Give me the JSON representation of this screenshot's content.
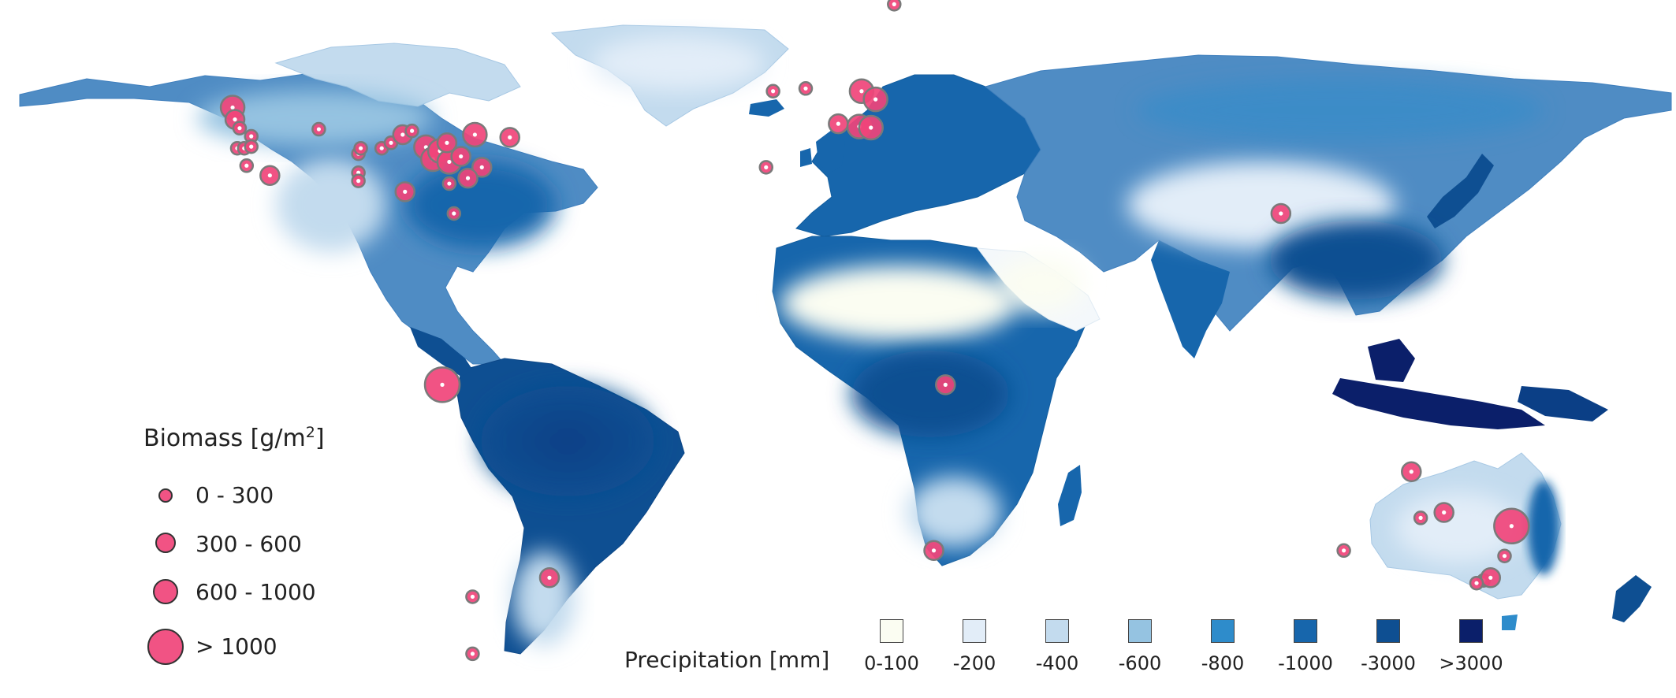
{
  "colors": {
    "ocean": "#ffffff",
    "marker_fill": "#f0447a",
    "marker_stroke": "#7a7a7a",
    "marker_core": "#ffffff"
  },
  "biomass_legend": {
    "title_text": "Biomass [g/m",
    "title_sup": "2",
    "title_close": "]",
    "classes": [
      {
        "label": "0 - 300",
        "size_class": 1
      },
      {
        "label": "300 - 600",
        "size_class": 2
      },
      {
        "label": "600 - 1000",
        "size_class": 3
      },
      {
        "label": "> 1000",
        "size_class": 4
      }
    ]
  },
  "precipitation_legend": {
    "title": "Precipitation [mm]",
    "classes": [
      {
        "label": "0-100",
        "color": "#fbfdf2"
      },
      {
        "label": "-200",
        "color": "#e2edf8"
      },
      {
        "label": "-400",
        "color": "#c3dbee"
      },
      {
        "label": "-600",
        "color": "#95c3e1"
      },
      {
        "label": "-800",
        "color": "#2e8ccb"
      },
      {
        "label": "-1000",
        "color": "#1766ac"
      },
      {
        "label": "-3000",
        "color": "#0e4f92"
      },
      {
        "label": ">3000",
        "color": "#0b1f6a"
      }
    ]
  },
  "sites": [
    {
      "lon": -123.0,
      "lat": 49.5,
      "size_class": 3
    },
    {
      "lon": -122.5,
      "lat": 47.3,
      "size_class": 2
    },
    {
      "lon": -121.5,
      "lat": 45.7,
      "size_class": 1
    },
    {
      "lon": -119.0,
      "lat": 44.2,
      "size_class": 1
    },
    {
      "lon": -122.0,
      "lat": 42.0,
      "size_class": 1
    },
    {
      "lon": -120.5,
      "lat": 42.0,
      "size_class": 1
    },
    {
      "lon": -119.0,
      "lat": 42.3,
      "size_class": 1
    },
    {
      "lon": -120.0,
      "lat": 38.8,
      "size_class": 1
    },
    {
      "lon": -115.0,
      "lat": 37.0,
      "size_class": 2
    },
    {
      "lon": -104.5,
      "lat": 45.5,
      "size_class": 1
    },
    {
      "lon": -96.0,
      "lat": 41.0,
      "size_class": 1
    },
    {
      "lon": -95.5,
      "lat": 42.0,
      "size_class": 1
    },
    {
      "lon": -91.0,
      "lat": 42.0,
      "size_class": 1
    },
    {
      "lon": -89.0,
      "lat": 43.0,
      "size_class": 1
    },
    {
      "lon": -96.0,
      "lat": 37.5,
      "size_class": 1
    },
    {
      "lon": -96.0,
      "lat": 36.0,
      "size_class": 1
    },
    {
      "lon": -86.5,
      "lat": 44.5,
      "size_class": 2
    },
    {
      "lon": -84.5,
      "lat": 45.2,
      "size_class": 1
    },
    {
      "lon": -81.5,
      "lat": 42.2,
      "size_class": 3
    },
    {
      "lon": -80.0,
      "lat": 40.0,
      "size_class": 3
    },
    {
      "lon": -78.5,
      "lat": 41.5,
      "size_class": 3
    },
    {
      "lon": -76.5,
      "lat": 39.5,
      "size_class": 3
    },
    {
      "lon": -74.0,
      "lat": 40.5,
      "size_class": 2
    },
    {
      "lon": -77.0,
      "lat": 43.0,
      "size_class": 2
    },
    {
      "lon": -71.0,
      "lat": 44.5,
      "size_class": 3
    },
    {
      "lon": -63.5,
      "lat": 44.0,
      "size_class": 2
    },
    {
      "lon": -69.5,
      "lat": 38.5,
      "size_class": 2
    },
    {
      "lon": -72.5,
      "lat": 36.5,
      "size_class": 2
    },
    {
      "lon": -76.5,
      "lat": 35.5,
      "size_class": 1
    },
    {
      "lon": -86.0,
      "lat": 34.0,
      "size_class": 2
    },
    {
      "lon": -75.5,
      "lat": 30.0,
      "size_class": 1
    },
    {
      "lon": -78.0,
      "lat": -1.5,
      "size_class": 4
    },
    {
      "lon": -55.0,
      "lat": -37.0,
      "size_class": 2
    },
    {
      "lon": -71.5,
      "lat": -40.5,
      "size_class": 1
    },
    {
      "lon": -71.5,
      "lat": -51.0,
      "size_class": 1
    },
    {
      "lon": -7.0,
      "lat": 52.5,
      "size_class": 1
    },
    {
      "lon": 0.0,
      "lat": 53.0,
      "size_class": 1
    },
    {
      "lon": 7.0,
      "lat": 46.5,
      "size_class": 2
    },
    {
      "lon": 12.0,
      "lat": 52.5,
      "size_class": 3
    },
    {
      "lon": 15.0,
      "lat": 51.0,
      "size_class": 3
    },
    {
      "lon": 11.5,
      "lat": 46.0,
      "size_class": 3
    },
    {
      "lon": 14.0,
      "lat": 45.8,
      "size_class": 3
    },
    {
      "lon": -8.5,
      "lat": 38.5,
      "size_class": 1
    },
    {
      "lon": 19.0,
      "lat": 68.5,
      "size_class": 1
    },
    {
      "lon": 30.0,
      "lat": -1.5,
      "size_class": 2
    },
    {
      "lon": 27.5,
      "lat": -32.0,
      "size_class": 2
    },
    {
      "lon": 102.0,
      "lat": 30.0,
      "size_class": 2
    },
    {
      "lon": 130.0,
      "lat": -17.5,
      "size_class": 2
    },
    {
      "lon": 137.0,
      "lat": -25.0,
      "size_class": 2
    },
    {
      "lon": 132.0,
      "lat": -26.0,
      "size_class": 1
    },
    {
      "lon": 151.5,
      "lat": -27.5,
      "size_class": 4
    },
    {
      "lon": 150.0,
      "lat": -33.0,
      "size_class": 1
    },
    {
      "lon": 145.5,
      "lat": -37.5,
      "size_class": 1
    },
    {
      "lon": 147.0,
      "lat": -37.0,
      "size_class": 2
    },
    {
      "lon": 144.0,
      "lat": -38.0,
      "size_class": 1
    },
    {
      "lon": 115.5,
      "lat": -32.0,
      "size_class": 1
    }
  ]
}
